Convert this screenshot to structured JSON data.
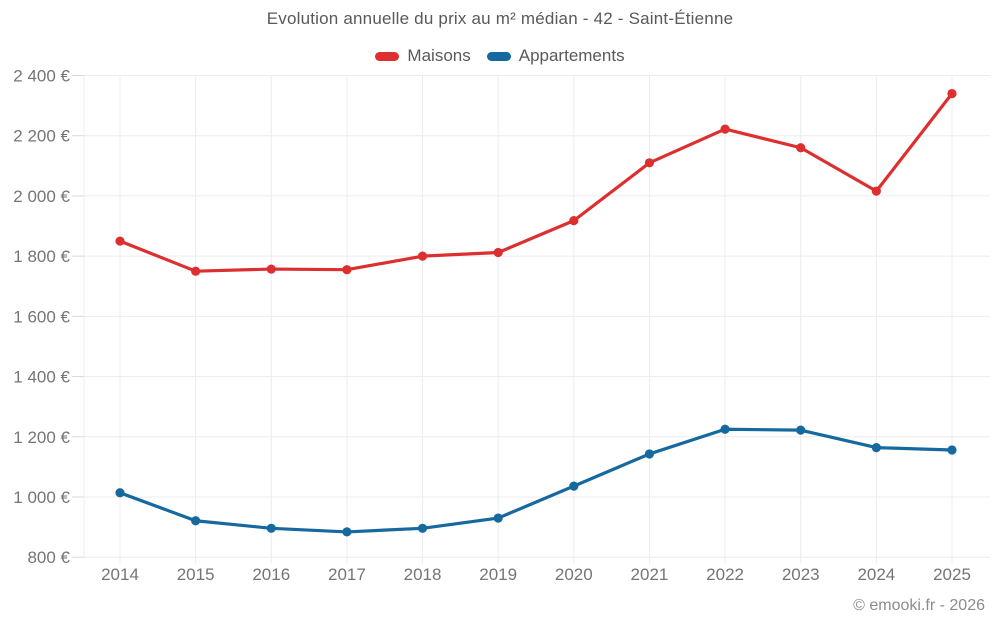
{
  "chart_data": {
    "type": "line",
    "title": "Evolution annuelle du prix au m² médian - 42 - Saint-Étienne",
    "categories": [
      "2014",
      "2015",
      "2016",
      "2017",
      "2018",
      "2019",
      "2020",
      "2021",
      "2022",
      "2023",
      "2024",
      "2025"
    ],
    "series": [
      {
        "name": "Maisons",
        "color": "#dd2f2f",
        "values": [
          1850,
          1750,
          1757,
          1755,
          1800,
          1812,
          1918,
          2110,
          2222,
          2160,
          2016,
          2340
        ]
      },
      {
        "name": "Appartements",
        "color": "#16699f",
        "values": [
          1014,
          921,
          896,
          884,
          896,
          930,
          1036,
          1143,
          1225,
          1222,
          1164,
          1156
        ]
      }
    ],
    "xlabel": "",
    "ylabel": "",
    "ylim": [
      800,
      2400
    ],
    "ytick_step": 200,
    "ytick_labels": [
      "800 €",
      "1 000 €",
      "1 200 €",
      "1 400 €",
      "1 600 €",
      "1 800 €",
      "2 000 €",
      "2 200 €",
      "2 400 €"
    ],
    "grid": true,
    "legend_position": "top",
    "footer": "© emooki.fr - 2026"
  },
  "style": {
    "grid_color": "#ececec",
    "tick_color": "#d9d9d9",
    "axis_label_color": "#757575"
  }
}
